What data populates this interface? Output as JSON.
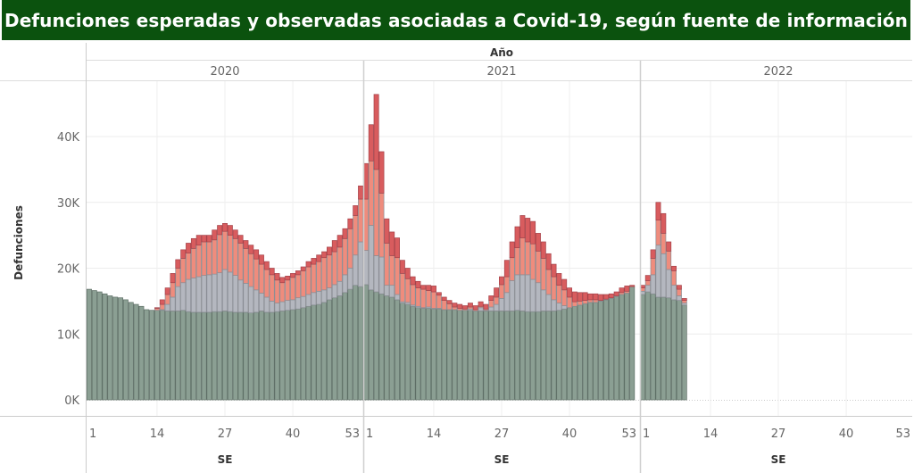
{
  "title": "Defunciones esperadas y observadas asociadas a Covid-19, según fuente de información",
  "colors": {
    "title_bg": "#0b520e",
    "green": "#8b9f93",
    "gray": "#b4b7bf",
    "salmon": "#ef8c7d",
    "red": "#d85c5e"
  },
  "chart_data": {
    "type": "bar",
    "stacked": true,
    "column_header": "Año",
    "xlabel": "SE",
    "ylabel": "Defunciones",
    "y_ticks": [
      {
        "value": 0,
        "label": "0K"
      },
      {
        "value": 10,
        "label": "10K"
      },
      {
        "value": 20,
        "label": "20K"
      },
      {
        "value": 30,
        "label": "30K"
      },
      {
        "value": 40,
        "label": "40K"
      }
    ],
    "ylim": [
      0,
      50
    ],
    "y_unit_note_in_ticks": "K",
    "x_ticks": [
      "1",
      "14",
      "27",
      "40",
      "53"
    ],
    "grid": true,
    "panels": [
      {
        "year": "2020",
        "weeks_start": 1,
        "series": [
          {
            "color": "green",
            "values": [
              16.8,
              16.6,
              16.4,
              16.1,
              15.8,
              15.6,
              15.5,
              15.2,
              14.8,
              14.5,
              14.2,
              13.7,
              13.6,
              13.6,
              13.6,
              13.5,
              13.5,
              13.5,
              13.6,
              13.4,
              13.3,
              13.3,
              13.3,
              13.3,
              13.4,
              13.4,
              13.5,
              13.4,
              13.3,
              13.3,
              13.3,
              13.2,
              13.3,
              13.5,
              13.3,
              13.3,
              13.4,
              13.5,
              13.6,
              13.7,
              13.8,
              14.0,
              14.2,
              14.4,
              14.5,
              14.8,
              15.2,
              15.5,
              15.8,
              16.3,
              16.8,
              17.4,
              17.2
            ]
          },
          {
            "color": "gray",
            "values": [
              0,
              0,
              0,
              0,
              0,
              0,
              0,
              0,
              0,
              0,
              0,
              0,
              0,
              0,
              0.1,
              1.0,
              2.1,
              3.7,
              4.2,
              4.9,
              5.2,
              5.4,
              5.6,
              5.7,
              5.7,
              5.9,
              6.3,
              6.0,
              5.6,
              4.9,
              4.4,
              4.0,
              3.4,
              2.7,
              2.3,
              1.7,
              1.3,
              1.4,
              1.5,
              1.5,
              1.7,
              1.7,
              1.8,
              1.9,
              2.0,
              1.9,
              1.8,
              2.0,
              2.2,
              2.7,
              3.2,
              4.6,
              6.8
            ]
          },
          {
            "color": "salmon",
            "values": [
              0,
              0,
              0,
              0,
              0,
              0,
              0,
              0,
              0,
              0,
              0,
              0,
              0,
              0.3,
              0.8,
              1.5,
              2.2,
              2.8,
              3.7,
              4.0,
              4.5,
              4.8,
              5.1,
              5.0,
              5.2,
              5.8,
              5.8,
              5.6,
              5.6,
              5.6,
              5.3,
              5.0,
              4.7,
              4.4,
              4.2,
              4.0,
              3.5,
              2.9,
              3.1,
              3.4,
              3.5,
              3.9,
              4.2,
              4.3,
              4.5,
              4.9,
              5.0,
              5.0,
              5.2,
              5.5,
              6.0,
              6.0,
              6.5
            ]
          },
          {
            "color": "red",
            "values": [
              0,
              0,
              0,
              0,
              0,
              0,
              0,
              0,
              0,
              0,
              0,
              0,
              0,
              0.1,
              0.7,
              1.0,
              1.4,
              1.3,
              1.3,
              1.5,
              1.5,
              1.5,
              1.0,
              1.0,
              1.5,
              1.4,
              1.2,
              1.5,
              1.3,
              1.2,
              1.2,
              1.3,
              1.4,
              1.4,
              1.2,
              1.0,
              1.0,
              0.8,
              0.6,
              0.6,
              0.6,
              0.6,
              0.8,
              0.9,
              1.0,
              0.9,
              1.2,
              1.7,
              1.8,
              1.5,
              1.5,
              1.5,
              2.0
            ]
          }
        ]
      },
      {
        "year": "2021",
        "weeks_start": 1,
        "series": [
          {
            "color": "green",
            "values": [
              17.5,
              16.7,
              16.4,
              16.1,
              15.8,
              15.6,
              15.2,
              14.7,
              14.5,
              14.2,
              14.0,
              13.9,
              13.9,
              13.8,
              13.8,
              13.7,
              13.7,
              13.7,
              13.6,
              13.6,
              13.6,
              13.5,
              13.5,
              13.5,
              13.5,
              13.5,
              13.5,
              13.5,
              13.5,
              13.6,
              13.5,
              13.4,
              13.4,
              13.4,
              13.5,
              13.5,
              13.5,
              13.6,
              13.8,
              14.0,
              14.2,
              14.4,
              14.6,
              14.8,
              14.8,
              15.0,
              15.2,
              15.4,
              15.7,
              16.0,
              16.2,
              17.2
            ]
          },
          {
            "color": "gray",
            "values": [
              5.2,
              9.8,
              5.5,
              5.6,
              1.6,
              1.8,
              0.8,
              0.2,
              0.3,
              0.2,
              0.2,
              0.1,
              0.2,
              0.1,
              0.1,
              0,
              0,
              0,
              0,
              0,
              0.2,
              0,
              0.5,
              0.1,
              0.6,
              1.0,
              1.9,
              2.8,
              4.6,
              5.4,
              5.5,
              5.6,
              4.9,
              4.4,
              3.2,
              2.5,
              1.7,
              1.1,
              0.5,
              0,
              0,
              0,
              0,
              0,
              0,
              0,
              0,
              0,
              0,
              0,
              0,
              0
            ]
          },
          {
            "color": "salmon",
            "values": [
              7.8,
              9.8,
              13.1,
              9.7,
              6.4,
              4.5,
              5.6,
              4.3,
              3.6,
              3.1,
              2.8,
              2.8,
              2.5,
              2.5,
              2.0,
              1.4,
              0.9,
              0.4,
              0.3,
              0.2,
              0.3,
              0.2,
              0.2,
              0.2,
              1.0,
              1.1,
              2.1,
              2.4,
              3.5,
              4.1,
              5.6,
              5.0,
              5.4,
              4.8,
              4.8,
              3.8,
              3.5,
              2.7,
              2.4,
              1.6,
              0.7,
              0.6,
              0.5,
              0.4,
              0.4,
              0.1,
              0.1,
              0.1,
              0.1,
              0.3,
              0.3,
              0
            ]
          },
          {
            "color": "red",
            "values": [
              5.4,
              5.5,
              11.4,
              6.3,
              3.7,
              3.6,
              3.0,
              2.0,
              1.6,
              1.2,
              1.0,
              0.6,
              0.8,
              0.9,
              0.4,
              0.5,
              0.5,
              0.6,
              0.6,
              0.5,
              0.6,
              0.6,
              0.7,
              0.7,
              0.7,
              1.4,
              1.2,
              2.5,
              2.4,
              3.2,
              3.4,
              3.6,
              3.4,
              2.7,
              2.5,
              2.4,
              1.9,
              1.8,
              1.6,
              1.4,
              1.5,
              1.3,
              1.2,
              0.9,
              0.9,
              0.9,
              0.7,
              0.6,
              0.6,
              0.7,
              0.8,
              0.2
            ]
          }
        ]
      },
      {
        "year": "2022",
        "weeks_start": 1,
        "series": [
          {
            "color": "green",
            "values": [
              16.0,
              16.4,
              16.1,
              15.6,
              15.6,
              15.5,
              15.2,
              15.1,
              14.4
            ]
          },
          {
            "color": "gray",
            "values": [
              0.5,
              1.0,
              2.9,
              7.9,
              6.6,
              4.3,
              2.2,
              0.7,
              0.3
            ]
          },
          {
            "color": "salmon",
            "values": [
              0.5,
              0.7,
              2.5,
              3.8,
              3.1,
              2.8,
              2.2,
              1.0,
              0.4
            ]
          },
          {
            "color": "red",
            "values": [
              0.4,
              0.8,
              1.3,
              2.7,
              3.0,
              1.4,
              0.7,
              0.6,
              0.3
            ]
          }
        ]
      }
    ]
  }
}
